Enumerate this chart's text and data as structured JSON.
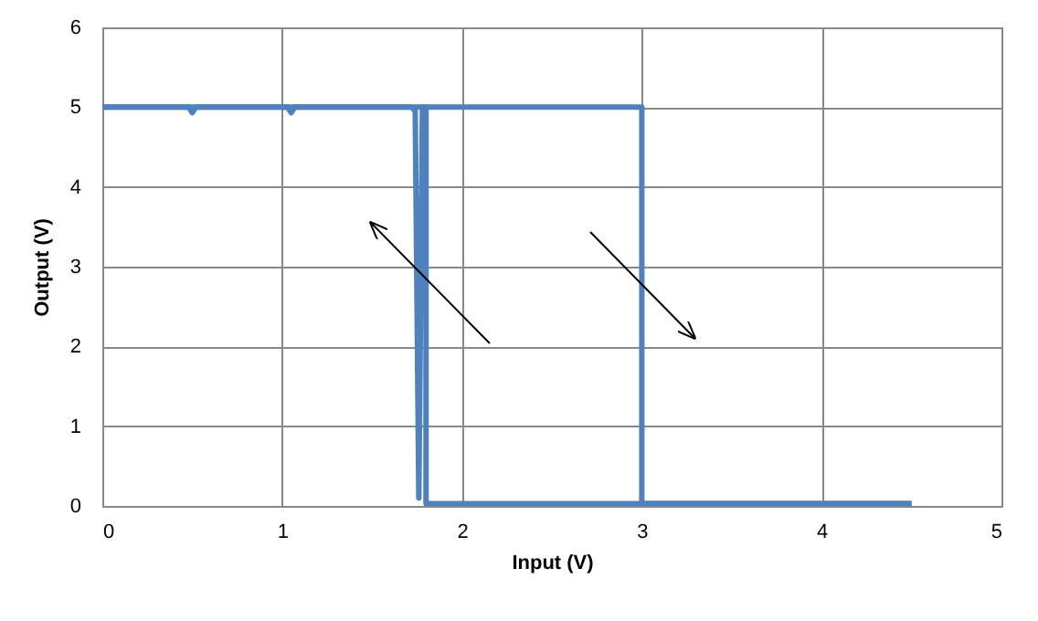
{
  "chart_data": {
    "type": "line",
    "xlabel": "Input (V)",
    "ylabel": "Output (V)",
    "xlim": [
      0,
      5
    ],
    "ylim": [
      0,
      6
    ],
    "xticks": [
      0,
      1,
      2,
      3,
      4,
      5
    ],
    "yticks": [
      0,
      1,
      2,
      3,
      4,
      5,
      6
    ],
    "grid": true,
    "series": [
      {
        "color": "#4f81bd",
        "x": [
          0,
          0.48,
          0.5,
          0.52,
          1.03,
          1.05,
          1.07,
          1.5,
          2,
          2.5,
          3,
          3,
          3.5,
          4,
          4.5
        ],
        "values": [
          5,
          5,
          4.93,
          5,
          5,
          4.93,
          5,
          5,
          5,
          5,
          5,
          0.03,
          0.03,
          0.03,
          0.03
        ]
      },
      {
        "color": "#4f81bd",
        "x": [
          0,
          0.5,
          1,
          1.5,
          1.72,
          1.74,
          1.76,
          1.78,
          1.8,
          1.8,
          2,
          2.5,
          3,
          3.5,
          4,
          4.5
        ],
        "values": [
          5,
          5,
          5,
          5,
          5,
          4.95,
          0.1,
          5,
          5,
          0.03,
          0.03,
          0.03,
          0.03,
          0.03,
          0.03,
          0.03
        ]
      }
    ]
  }
}
